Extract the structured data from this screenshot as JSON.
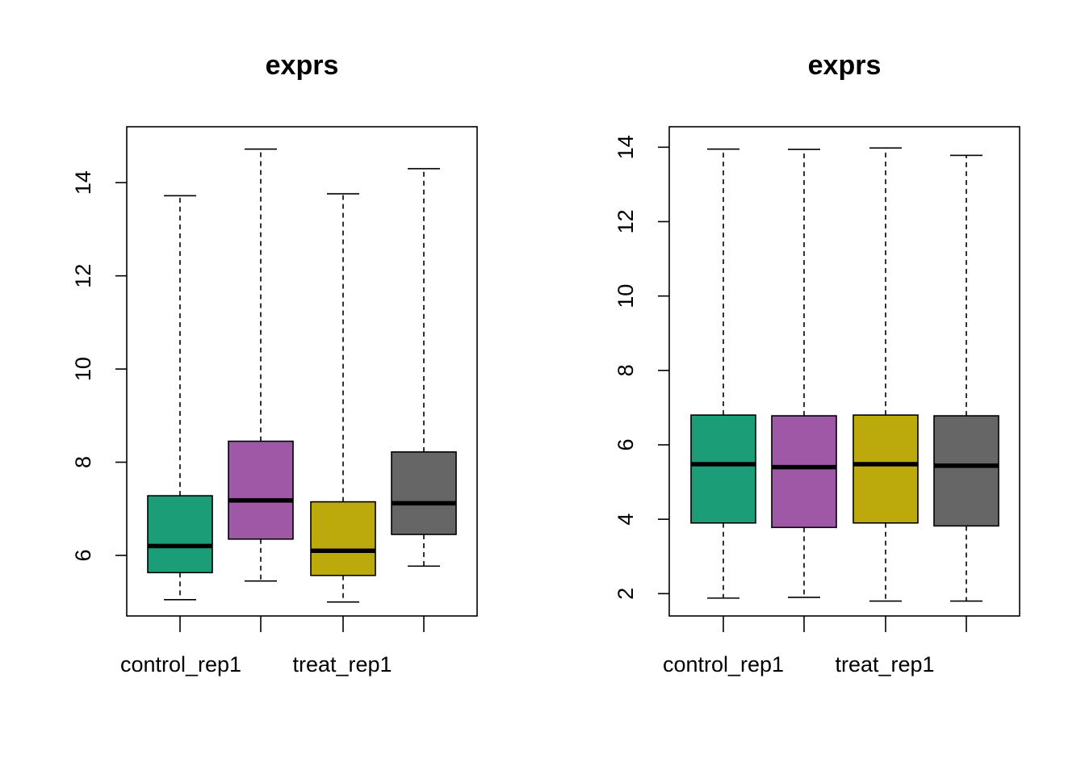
{
  "chart_data": [
    {
      "type": "boxplot",
      "title": "exprs",
      "xlabel": "",
      "ylabel": "",
      "ylim": [
        4.7,
        15.2
      ],
      "yticks": [
        6,
        8,
        10,
        12,
        14
      ],
      "x_tick_labels_shown": [
        "control_rep1",
        "",
        "treat_rep1",
        ""
      ],
      "grid": false,
      "series": [
        {
          "color": "#1b9e77",
          "min": 5.05,
          "q1": 5.63,
          "median": 6.2,
          "q3": 7.28,
          "max": 13.72
        },
        {
          "color": "#9e58a5",
          "min": 5.45,
          "q1": 6.35,
          "median": 7.18,
          "q3": 8.45,
          "max": 14.72
        },
        {
          "color": "#bcaa0d",
          "min": 5.0,
          "q1": 5.57,
          "median": 6.1,
          "q3": 7.15,
          "max": 13.76
        },
        {
          "color": "#666666",
          "min": 5.77,
          "q1": 6.45,
          "median": 7.12,
          "q3": 8.22,
          "max": 14.3
        }
      ]
    },
    {
      "type": "boxplot",
      "title": "exprs",
      "xlabel": "",
      "ylabel": "",
      "ylim": [
        1.4,
        14.55
      ],
      "yticks": [
        2,
        4,
        6,
        8,
        10,
        12,
        14
      ],
      "x_tick_labels_shown": [
        "control_rep1",
        "",
        "treat_rep1",
        ""
      ],
      "grid": false,
      "series": [
        {
          "color": "#1b9e77",
          "min": 1.88,
          "q1": 3.9,
          "median": 5.48,
          "q3": 6.8,
          "max": 13.95
        },
        {
          "color": "#9e58a5",
          "min": 1.9,
          "q1": 3.78,
          "median": 5.4,
          "q3": 6.78,
          "max": 13.94
        },
        {
          "color": "#bcaa0d",
          "min": 1.8,
          "q1": 3.9,
          "median": 5.48,
          "q3": 6.8,
          "max": 13.98
        },
        {
          "color": "#666666",
          "min": 1.8,
          "q1": 3.82,
          "median": 5.44,
          "q3": 6.78,
          "max": 13.78
        }
      ]
    }
  ]
}
